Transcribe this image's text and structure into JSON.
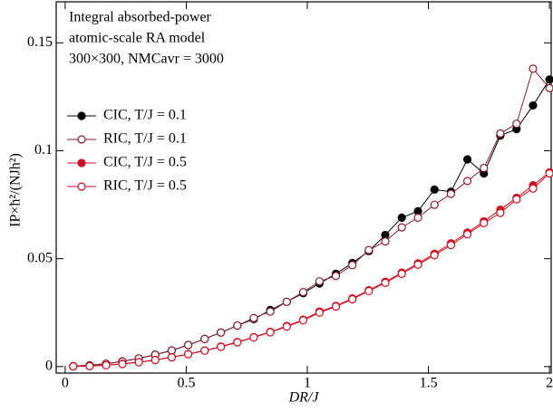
{
  "chart_data": {
    "type": "line",
    "annotation": [
      "Integral absorbed-power",
      "atomic-scale RA model",
      "300×300, NMCavr = 3000"
    ],
    "x_label": "DR/J",
    "y_label": "IP×ħ²/(NJh²)",
    "xlim": [
      -0.037,
      2.007
    ],
    "ylim": [
      -0.003,
      0.169
    ],
    "xticks": [
      0,
      0.5,
      1,
      1.5,
      2
    ],
    "yticks": [
      0,
      0.05,
      0.1,
      0.15
    ],
    "x": [
      0.033,
      0.101,
      0.169,
      0.236,
      0.304,
      0.372,
      0.44,
      0.508,
      0.576,
      0.643,
      0.711,
      0.779,
      0.847,
      0.915,
      0.983,
      1.05,
      1.118,
      1.186,
      1.254,
      1.322,
      1.39,
      1.457,
      1.525,
      1.593,
      1.661,
      1.729,
      1.797,
      1.864,
      1.932,
      2.0
    ],
    "legend": "upper left",
    "series": [
      {
        "name": "CIC, T/J = 0.1",
        "color": "#000000",
        "marker": "filled",
        "values": [
          0.0002,
          0.0006,
          0.0013,
          0.0024,
          0.0038,
          0.0055,
          0.0075,
          0.01,
          0.0128,
          0.0158,
          0.019,
          0.022,
          0.0262,
          0.03,
          0.034,
          0.0385,
          0.043,
          0.048,
          0.0535,
          0.061,
          0.069,
          0.072,
          0.082,
          0.081,
          0.096,
          0.0895,
          0.107,
          0.11,
          0.121,
          0.133
        ]
      },
      {
        "name": "RIC, T/J = 0.1",
        "color": "#8b1a2e",
        "marker": "open",
        "values": [
          0.0002,
          0.0006,
          0.0013,
          0.0024,
          0.0038,
          0.0055,
          0.0075,
          0.01,
          0.0128,
          0.0158,
          0.019,
          0.0225,
          0.0255,
          0.03,
          0.0345,
          0.0395,
          0.042,
          0.047,
          0.054,
          0.058,
          0.0645,
          0.069,
          0.075,
          0.08,
          0.086,
          0.092,
          0.108,
          0.1125,
          0.138,
          0.129
        ]
      },
      {
        "name": "CIC, T/J = 0.5",
        "color": "#cc1122",
        "marker": "filled",
        "values": [
          0.0001,
          0.0002,
          0.0006,
          0.0013,
          0.0021,
          0.0031,
          0.0044,
          0.0058,
          0.0075,
          0.0093,
          0.0114,
          0.0137,
          0.0161,
          0.0188,
          0.0217,
          0.0255,
          0.0281,
          0.0316,
          0.0354,
          0.0393,
          0.0435,
          0.0478,
          0.0523,
          0.0571,
          0.0621,
          0.0673,
          0.0727,
          0.0782,
          0.084,
          0.09
        ]
      },
      {
        "name": "RIC, T/J = 0.5",
        "color": "#cc1122",
        "marker": "open",
        "values": [
          0.0001,
          0.0002,
          0.0006,
          0.0012,
          0.002,
          0.003,
          0.0043,
          0.0057,
          0.0074,
          0.0091,
          0.0112,
          0.0135,
          0.0159,
          0.0185,
          0.0214,
          0.025,
          0.0278,
          0.0312,
          0.035,
          0.0388,
          0.043,
          0.0472,
          0.0516,
          0.0563,
          0.0613,
          0.0665,
          0.0712,
          0.0775,
          0.0825,
          0.0895
        ]
      }
    ]
  }
}
